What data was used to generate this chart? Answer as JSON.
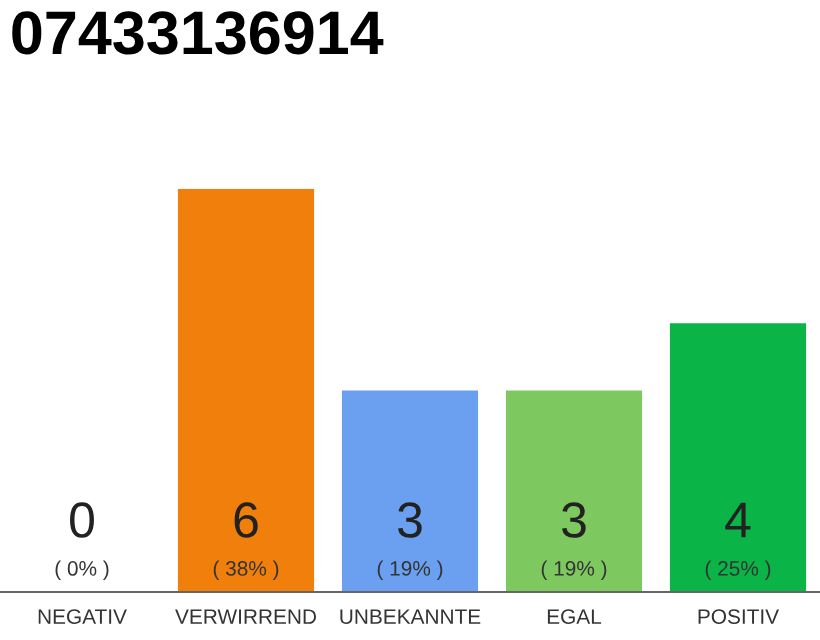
{
  "chart_data": {
    "type": "bar",
    "title": "07433136914",
    "categories": [
      "NEGATIV",
      "VERWIRREND",
      "UNBEKANNTE",
      "EGAL",
      "POSITIV"
    ],
    "values": [
      0,
      6,
      3,
      3,
      4
    ],
    "colors": [
      "#d0d0d0",
      "#f07f0c",
      "#6aa0ef",
      "#7ec860",
      "#0ab447"
    ],
    "value_labels": [
      "0\n( 0% )",
      "6\n( 38% )",
      "3\n( 19% )",
      "3\n( 19% )",
      "4\n( 25% )"
    ],
    "ylim": [
      0,
      6
    ],
    "tick_labels": "x",
    "grid": false,
    "legend": false
  }
}
